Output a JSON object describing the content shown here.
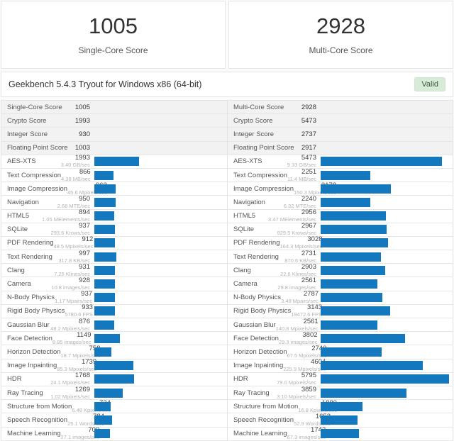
{
  "header": {
    "single": {
      "score": "1005",
      "label": "Single-Core Score"
    },
    "multi": {
      "score": "2928",
      "label": "Multi-Core Score"
    }
  },
  "result_bar": {
    "title": "Geekbench 5.4.3 Tryout for Windows x86 (64-bit)",
    "badge": "Valid"
  },
  "colors": {
    "bar": "#1478be",
    "badge_bg": "#d8ead8",
    "badge_text": "#3c5a3c",
    "badge_border": "#cfe3cf"
  },
  "table": {
    "max_score": 5795,
    "columns": [
      {
        "name": "single-core",
        "sections": [
          {
            "label": "Single-Core Score",
            "value": "1005"
          },
          {
            "label": "Crypto Score",
            "value": "1993"
          },
          {
            "label": "Integer Score",
            "value": "930"
          },
          {
            "label": "Floating Point Score",
            "value": "1003"
          }
        ],
        "benchmarks": [
          {
            "name": "AES-XTS",
            "score": 1993,
            "rate": "3.40 GB/sec"
          },
          {
            "name": "Text Compression",
            "score": 866,
            "rate": "4.38 MB/sec"
          },
          {
            "name": "Image Compression",
            "score": 963,
            "rate": "45.6 Mpixels/sec"
          },
          {
            "name": "Navigation",
            "score": 950,
            "rate": "2.68 MTE/sec"
          },
          {
            "name": "HTML5",
            "score": 894,
            "rate": "1.05 MElements/sec"
          },
          {
            "name": "SQLite",
            "score": 937,
            "rate": "293.6 Krows/sec"
          },
          {
            "name": "PDF Rendering",
            "score": 912,
            "rate": "49.5 Mpixels/sec"
          },
          {
            "name": "Text Rendering",
            "score": 997,
            "rate": "317.8 KB/sec"
          },
          {
            "name": "Clang",
            "score": 931,
            "rate": "7.25 Klines/sec"
          },
          {
            "name": "Camera",
            "score": 928,
            "rate": "10.8 images/sec"
          },
          {
            "name": "N-Body Physics",
            "score": 937,
            "rate": "1.17 Mpairs/sec"
          },
          {
            "name": "Rigid Body Physics",
            "score": 933,
            "rate": "5780.6 FPS"
          },
          {
            "name": "Gaussian Blur",
            "score": 876,
            "rate": "48.2 Mpixels/sec"
          },
          {
            "name": "Face Detection",
            "score": 1149,
            "rate": "8.85 images/sec"
          },
          {
            "name": "Horizon Detection",
            "score": 758,
            "rate": "18.7 Mpixels/sec"
          },
          {
            "name": "Image Inpainting",
            "score": 1739,
            "rate": "85.3 Mpixels/sec"
          },
          {
            "name": "HDR",
            "score": 1768,
            "rate": "24.1 Mpixels/sec"
          },
          {
            "name": "Ray Tracing",
            "score": 1269,
            "rate": "1.02 Mpixels/sec"
          },
          {
            "name": "Structure from Motion",
            "score": 724,
            "rate": "6.48 Kpixels/sec"
          },
          {
            "name": "Speech Recognition",
            "score": 784,
            "rate": "25.1 Words/sec"
          },
          {
            "name": "Machine Learning",
            "score": 700,
            "rate": "27.1 images/sec"
          }
        ]
      },
      {
        "name": "multi-core",
        "sections": [
          {
            "label": "Multi-Core Score",
            "value": "2928"
          },
          {
            "label": "Crypto Score",
            "value": "5473"
          },
          {
            "label": "Integer Score",
            "value": "2737"
          },
          {
            "label": "Floating Point Score",
            "value": "2917"
          }
        ],
        "benchmarks": [
          {
            "name": "AES-XTS",
            "score": 5473,
            "rate": "9.33 GB/sec"
          },
          {
            "name": "Text Compression",
            "score": 2251,
            "rate": "11.4 MB/sec"
          },
          {
            "name": "Image Compression",
            "score": 3178,
            "rate": "150.3 Mpixels/sec"
          },
          {
            "name": "Navigation",
            "score": 2240,
            "rate": "6.32 MTE/sec"
          },
          {
            "name": "HTML5",
            "score": 2956,
            "rate": "3.47 MElements/sec"
          },
          {
            "name": "SQLite",
            "score": 2967,
            "rate": "929.5 Krows/sec"
          },
          {
            "name": "PDF Rendering",
            "score": 3028,
            "rate": "164.3 Mpixels/sec"
          },
          {
            "name": "Text Rendering",
            "score": 2731,
            "rate": "870.6 KB/sec"
          },
          {
            "name": "Clang",
            "score": 2903,
            "rate": "22.6 Klines/sec"
          },
          {
            "name": "Camera",
            "score": 2561,
            "rate": "29.8 images/sec"
          },
          {
            "name": "N-Body Physics",
            "score": 2787,
            "rate": "3.49 Mpairs/sec"
          },
          {
            "name": "Rigid Body Physics",
            "score": 3143,
            "rate": "19472.6 FPS"
          },
          {
            "name": "Gaussian Blur",
            "score": 2561,
            "rate": "140.8 Mpixels/sec"
          },
          {
            "name": "Face Detection",
            "score": 3802,
            "rate": "29.3 images/sec"
          },
          {
            "name": "Horizon Detection",
            "score": 2740,
            "rate": "67.5 Mpixels/sec"
          },
          {
            "name": "Image Inpainting",
            "score": 4604,
            "rate": "225.9 Mpixels/sec"
          },
          {
            "name": "HDR",
            "score": 5795,
            "rate": "79.0 Mpixels/sec"
          },
          {
            "name": "Ray Tracing",
            "score": 3859,
            "rate": "3.10 Mpixels/sec"
          },
          {
            "name": "Structure from Motion",
            "score": 1880,
            "rate": "16.8 Kpixels/sec"
          },
          {
            "name": "Speech Recognition",
            "score": 1653,
            "rate": "52.9 Words/sec"
          },
          {
            "name": "Machine Learning",
            "score": 1743,
            "rate": "67.3 images/sec"
          }
        ]
      }
    ]
  }
}
